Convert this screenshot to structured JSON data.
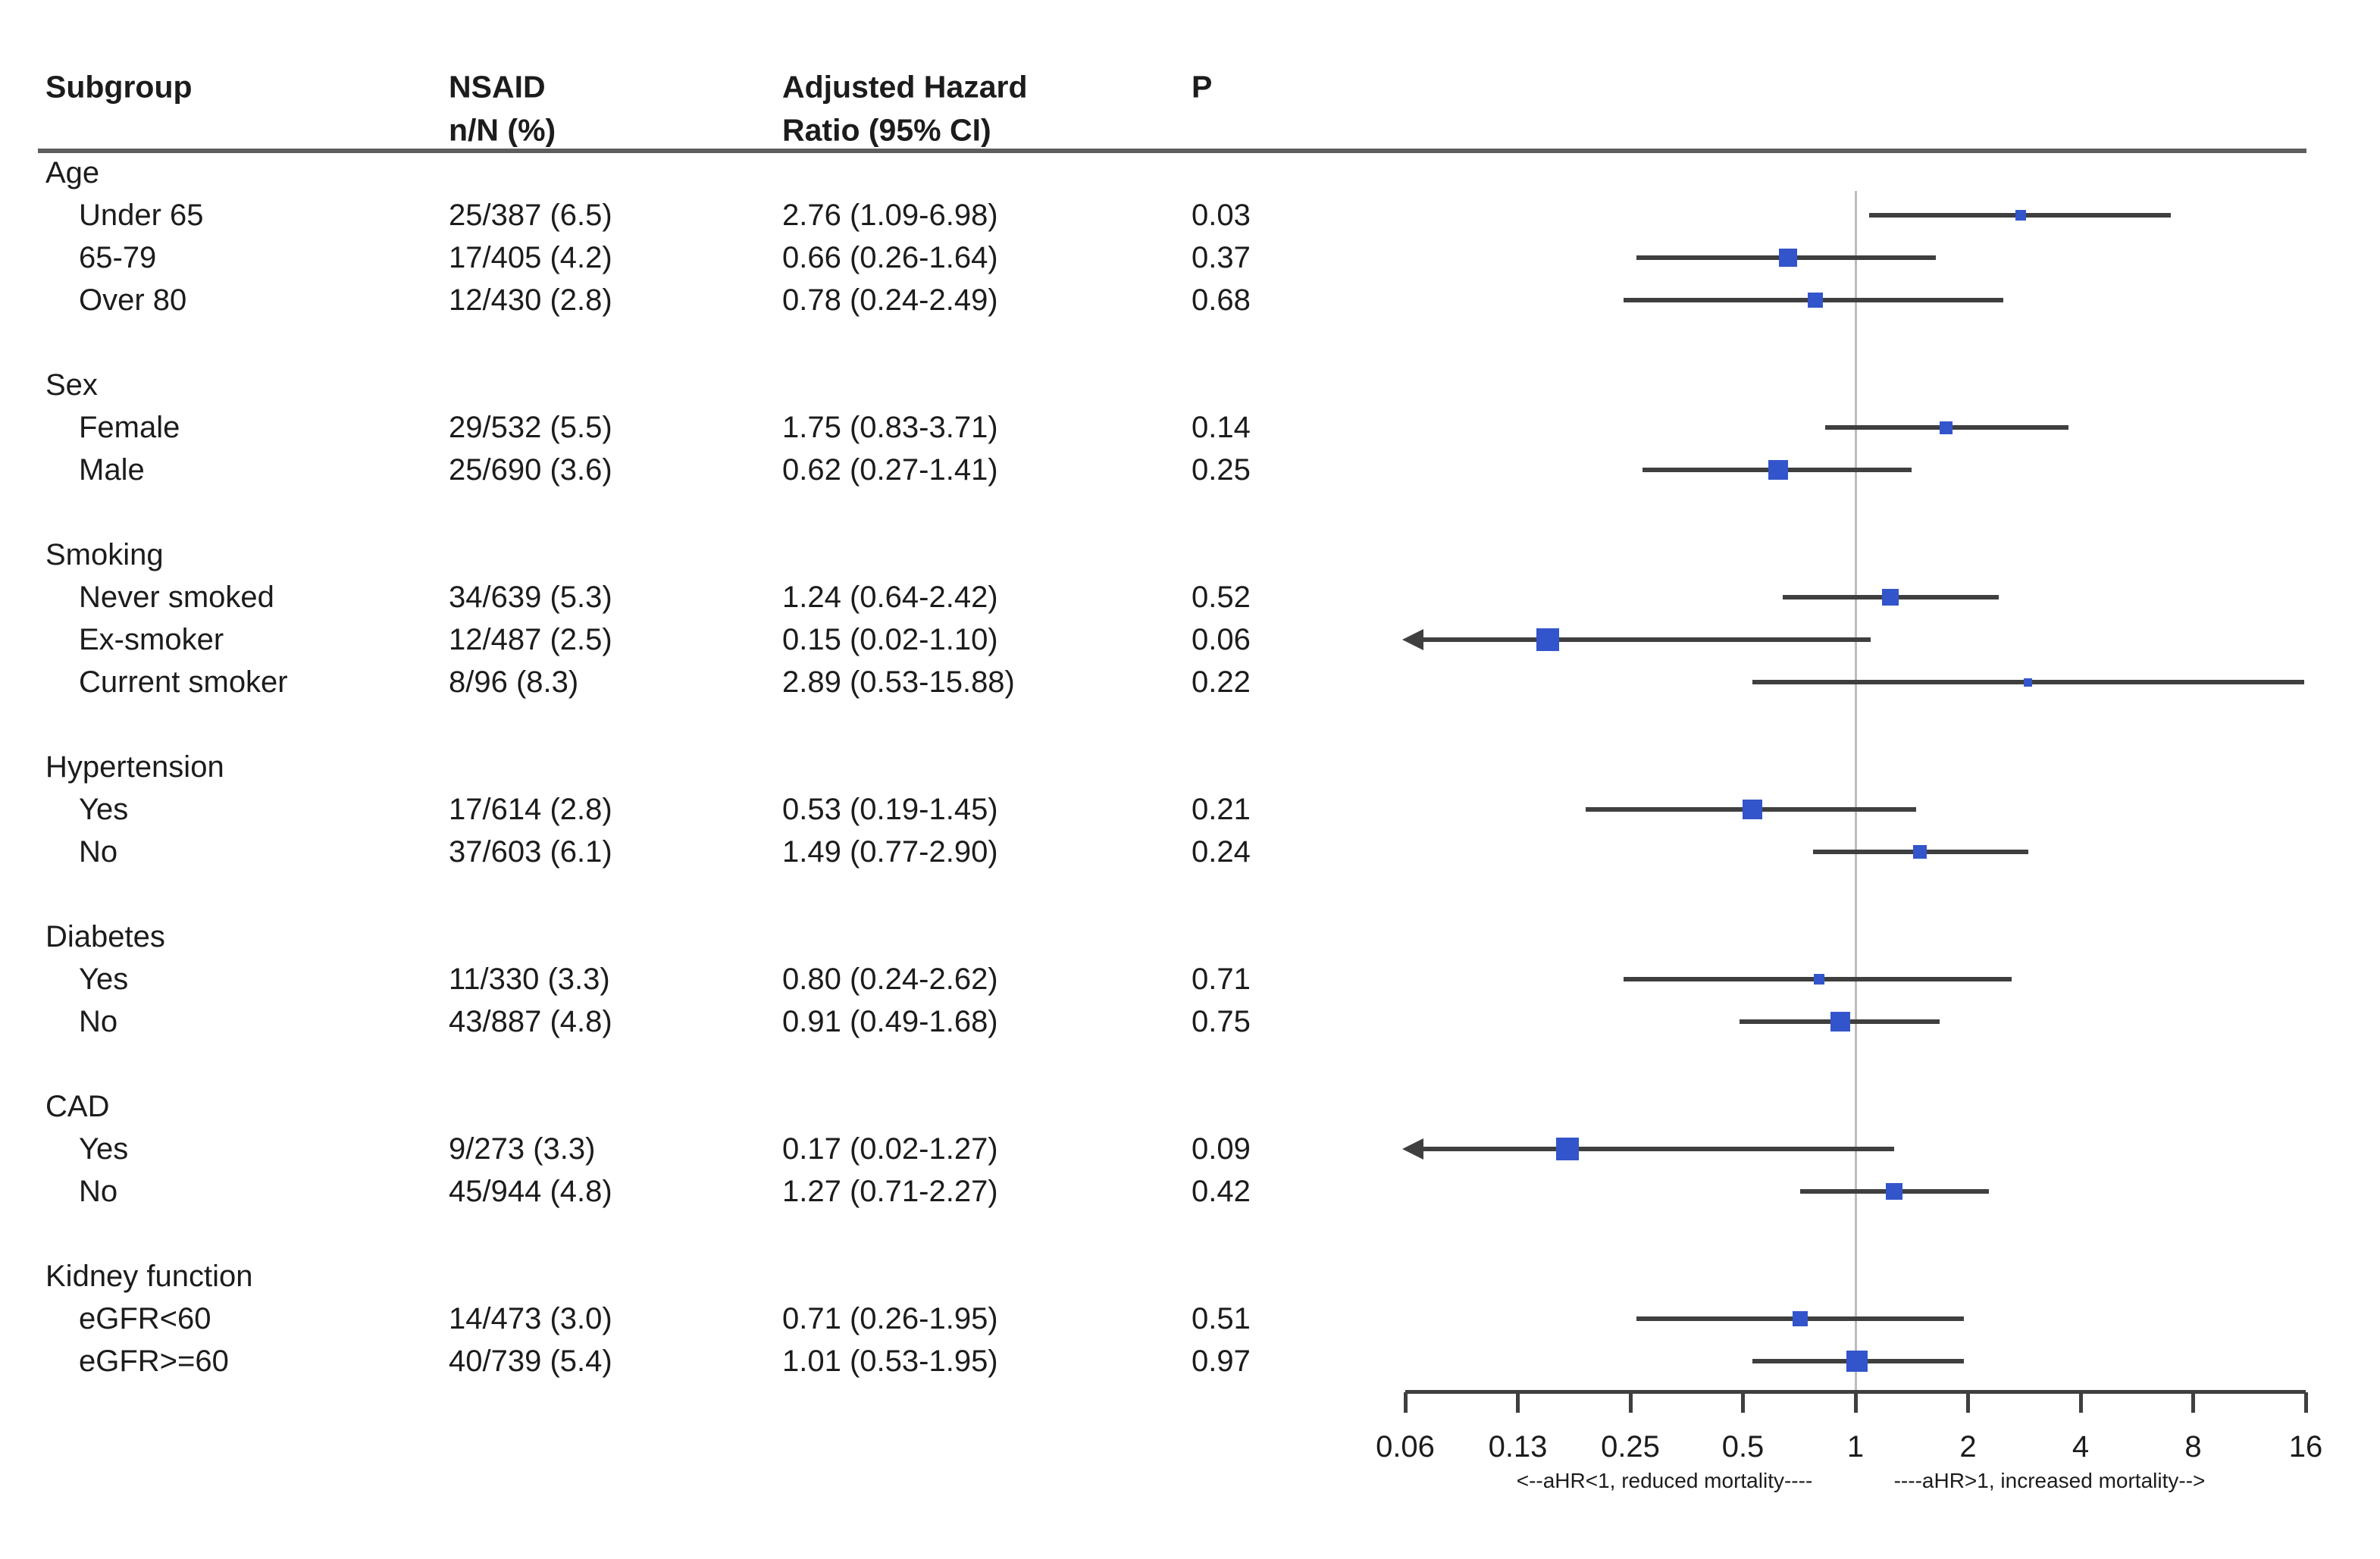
{
  "figure": {
    "header": {
      "subgroup": "Subgroup",
      "nsaid_line1": "NSAID",
      "nsaid_line2": "n/N (%)",
      "ahr_line1": "Adjusted Hazard",
      "ahr_line2": "Ratio (95% CI)",
      "p": "P"
    }
  },
  "chart_data": {
    "type": "forest",
    "x_scale": "log2",
    "xlim": [
      0.0625,
      16
    ],
    "reference_line": 1,
    "marker_color": "#3355cb",
    "ci_color": "#3f3f3f",
    "x_ticks": [
      {
        "value": 0.0625,
        "label": "0.06"
      },
      {
        "value": 0.125,
        "label": "0.13"
      },
      {
        "value": 0.25,
        "label": "0.25"
      },
      {
        "value": 0.5,
        "label": "0.5"
      },
      {
        "value": 1,
        "label": "1"
      },
      {
        "value": 2,
        "label": "2"
      },
      {
        "value": 4,
        "label": "4"
      },
      {
        "value": 8,
        "label": "8"
      },
      {
        "value": 16,
        "label": "16"
      }
    ],
    "axis_note_left": "<--aHR<1, reduced mortality----",
    "axis_note_right": "----aHR>1, increased mortality-->",
    "groups": [
      {
        "label": "Age",
        "rows": [
          {
            "label": "Under 65",
            "nsaid": "25/387 (6.5)",
            "ahr_text": "2.76 (1.09-6.98)",
            "p": "0.03",
            "hr": 2.76,
            "lo": 1.09,
            "hi": 6.98,
            "weight": 14,
            "clip_low": false
          },
          {
            "label": "65-79",
            "nsaid": "17/405 (4.2)",
            "ahr_text": "0.66 (0.26-1.64)",
            "p": "0.37",
            "hr": 0.66,
            "lo": 0.26,
            "hi": 1.64,
            "weight": 24,
            "clip_low": false
          },
          {
            "label": "Over 80",
            "nsaid": "12/430 (2.8)",
            "ahr_text": "0.78 (0.24-2.49)",
            "p": "0.68",
            "hr": 0.78,
            "lo": 0.24,
            "hi": 2.49,
            "weight": 20,
            "clip_low": false
          }
        ]
      },
      {
        "label": "Sex",
        "rows": [
          {
            "label": "Female",
            "nsaid": "29/532 (5.5)",
            "ahr_text": "1.75 (0.83-3.71)",
            "p": "0.14",
            "hr": 1.75,
            "lo": 0.83,
            "hi": 3.71,
            "weight": 17,
            "clip_low": false
          },
          {
            "label": "Male",
            "nsaid": "25/690 (3.6)",
            "ahr_text": "0.62 (0.27-1.41)",
            "p": "0.25",
            "hr": 0.62,
            "lo": 0.27,
            "hi": 1.41,
            "weight": 26,
            "clip_low": false
          }
        ]
      },
      {
        "label": "Smoking",
        "rows": [
          {
            "label": "Never smoked",
            "nsaid": "34/639 (5.3)",
            "ahr_text": "1.24 (0.64-2.42)",
            "p": "0.52",
            "hr": 1.24,
            "lo": 0.64,
            "hi": 2.42,
            "weight": 22,
            "clip_low": false
          },
          {
            "label": "Ex-smoker",
            "nsaid": "12/487 (2.5)",
            "ahr_text": "0.15 (0.02-1.10)",
            "p": "0.06",
            "hr": 0.15,
            "lo": 0.02,
            "hi": 1.1,
            "weight": 30,
            "clip_low": true
          },
          {
            "label": "Current smoker",
            "nsaid": "8/96 (8.3)",
            "ahr_text": "2.89 (0.53-15.88)",
            "p": "0.22",
            "hr": 2.89,
            "lo": 0.53,
            "hi": 15.88,
            "weight": 11,
            "clip_low": false
          }
        ]
      },
      {
        "label": "Hypertension",
        "rows": [
          {
            "label": "Yes",
            "nsaid": "17/614 (2.8)",
            "ahr_text": "0.53 (0.19-1.45)",
            "p": "0.21",
            "hr": 0.53,
            "lo": 0.19,
            "hi": 1.45,
            "weight": 26,
            "clip_low": false
          },
          {
            "label": "No",
            "nsaid": "37/603 (6.1)",
            "ahr_text": "1.49 (0.77-2.90)",
            "p": "0.24",
            "hr": 1.49,
            "lo": 0.77,
            "hi": 2.9,
            "weight": 18,
            "clip_low": false
          }
        ]
      },
      {
        "label": "Diabetes",
        "rows": [
          {
            "label": "Yes",
            "nsaid": "11/330 (3.3)",
            "ahr_text": "0.80 (0.24-2.62)",
            "p": "0.71",
            "hr": 0.8,
            "lo": 0.24,
            "hi": 2.62,
            "weight": 14,
            "clip_low": false
          },
          {
            "label": "No",
            "nsaid": "43/887 (4.8)",
            "ahr_text": "0.91 (0.49-1.68)",
            "p": "0.75",
            "hr": 0.91,
            "lo": 0.49,
            "hi": 1.68,
            "weight": 26,
            "clip_low": false
          }
        ]
      },
      {
        "label": "CAD",
        "rows": [
          {
            "label": "Yes",
            "nsaid": "9/273 (3.3)",
            "ahr_text": "0.17 (0.02-1.27)",
            "p": "0.09",
            "hr": 0.17,
            "lo": 0.02,
            "hi": 1.27,
            "weight": 30,
            "clip_low": true
          },
          {
            "label": "No",
            "nsaid": "45/944 (4.8)",
            "ahr_text": "1.27 (0.71-2.27)",
            "p": "0.42",
            "hr": 1.27,
            "lo": 0.71,
            "hi": 2.27,
            "weight": 22,
            "clip_low": false
          }
        ]
      },
      {
        "label": "Kidney function",
        "rows": [
          {
            "label": "eGFR<60",
            "nsaid": "14/473 (3.0)",
            "ahr_text": "0.71 (0.26-1.95)",
            "p": "0.51",
            "hr": 0.71,
            "lo": 0.26,
            "hi": 1.95,
            "weight": 20,
            "clip_low": false
          },
          {
            "label": "eGFR>=60",
            "nsaid": "40/739 (5.4)",
            "ahr_text": "1.01 (0.53-1.95)",
            "p": "0.97",
            "hr": 1.01,
            "lo": 0.53,
            "hi": 1.95,
            "weight": 28,
            "clip_low": false
          }
        ]
      }
    ]
  }
}
